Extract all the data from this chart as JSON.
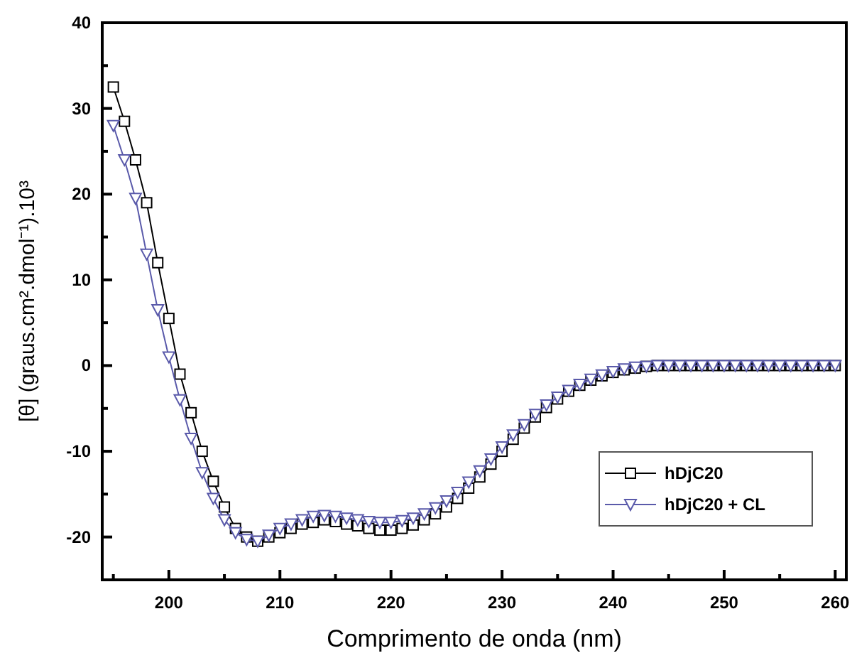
{
  "chart_data": {
    "type": "line",
    "xlabel": "Comprimento de onda (nm)",
    "ylabel": "[θ] (graus.cm².dmol⁻¹).10³",
    "x": [
      195,
      196,
      197,
      198,
      199,
      200,
      201,
      202,
      203,
      204,
      205,
      206,
      207,
      208,
      209,
      210,
      211,
      212,
      213,
      214,
      215,
      216,
      217,
      218,
      219,
      220,
      221,
      222,
      223,
      224,
      225,
      226,
      227,
      228,
      229,
      230,
      231,
      232,
      233,
      234,
      235,
      236,
      237,
      238,
      239,
      240,
      241,
      242,
      243,
      244,
      245,
      246,
      247,
      248,
      249,
      250,
      251,
      252,
      253,
      254,
      255,
      256,
      257,
      258,
      259,
      260
    ],
    "series": [
      {
        "name": "hDjC20",
        "color": "#000000",
        "marker": "square",
        "values": [
          32.5,
          28.5,
          24,
          19,
          12,
          5.5,
          -1,
          -5.5,
          -10,
          -13.5,
          -16.5,
          -19,
          -20,
          -20.5,
          -20,
          -19.5,
          -19,
          -18.5,
          -18.3,
          -18,
          -18.2,
          -18.5,
          -18.7,
          -19,
          -19.2,
          -19.2,
          -19,
          -18.6,
          -18,
          -17.3,
          -16.5,
          -15.5,
          -14.3,
          -13,
          -11.5,
          -10,
          -8.6,
          -7.3,
          -6,
          -4.9,
          -3.9,
          -3,
          -2.3,
          -1.7,
          -1.2,
          -0.8,
          -0.5,
          -0.3,
          -0.1,
          0,
          0,
          0,
          0,
          0,
          0,
          0,
          0,
          0,
          0,
          0,
          0,
          0,
          0,
          0,
          0,
          0
        ]
      },
      {
        "name": "hDjC20 + CL",
        "color": "#5a5aaa",
        "marker": "triangle",
        "values": [
          28,
          24,
          19.5,
          13,
          6.5,
          1,
          -4,
          -8.5,
          -12.5,
          -15.5,
          -18,
          -19.5,
          -20.3,
          -20.5,
          -19.8,
          -19,
          -18.5,
          -18,
          -17.6,
          -17.5,
          -17.6,
          -17.8,
          -18,
          -18.2,
          -18.3,
          -18.3,
          -18.1,
          -17.8,
          -17.3,
          -16.6,
          -15.8,
          -14.8,
          -13.6,
          -12.3,
          -10.9,
          -9.5,
          -8.1,
          -6.9,
          -5.7,
          -4.6,
          -3.7,
          -2.9,
          -2.2,
          -1.6,
          -1.1,
          -0.7,
          -0.4,
          -0.2,
          -0.1,
          0,
          0,
          0,
          0,
          0,
          0,
          0,
          0,
          0,
          0,
          0,
          0,
          0,
          0,
          0,
          0,
          0
        ]
      }
    ],
    "xlim": [
      194,
      261
    ],
    "ylim": [
      -25,
      40
    ],
    "xticks": [
      {
        "value": 195,
        "label": null
      },
      200,
      {
        "value": 205,
        "label": null
      },
      210,
      {
        "value": 215,
        "label": null
      },
      220,
      {
        "value": 225,
        "label": null
      },
      230,
      {
        "value": 235,
        "label": null
      },
      240,
      {
        "value": 245,
        "label": null
      },
      250,
      {
        "value": 255,
        "label": null
      },
      260
    ],
    "yticks": [
      {
        "value": -25,
        "label": null
      },
      -20,
      {
        "value": -15,
        "label": null
      },
      -10,
      {
        "value": -5,
        "label": null
      },
      0,
      {
        "value": 5,
        "label": null
      },
      10,
      {
        "value": 15,
        "label": null
      },
      20,
      {
        "value": 25,
        "label": null
      },
      30,
      {
        "value": 35,
        "label": null
      },
      40
    ],
    "grid": false,
    "legend": "bottom right",
    "line_style": "solid"
  }
}
